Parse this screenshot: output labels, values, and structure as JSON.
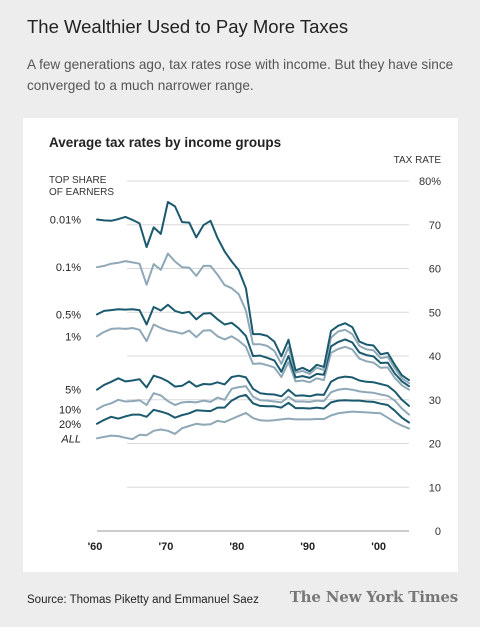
{
  "headline": "The Wealthier Used to Pay More Taxes",
  "subhead": "A few generations ago, tax rates rose with income. But they have since converged to a much narrower range.",
  "source": "Source: Thomas Piketty and Emmanuel Saez",
  "logo": "The New York Times",
  "colors": {
    "dark": "#1b5a6e",
    "light": "#8fa8b8"
  },
  "chart_data": {
    "type": "line",
    "title": "Average tax rates by income groups",
    "ylabel": "TAX RATE",
    "legend_title": "TOP SHARE\nOF EARNERS",
    "ylim": [
      0,
      80
    ],
    "yticks": [
      0,
      10,
      20,
      30,
      40,
      50,
      60,
      70,
      80
    ],
    "ytick_suffix_top": "%",
    "xlim": [
      1960,
      2004
    ],
    "xticks": [
      {
        "value": 1960,
        "label": "'60"
      },
      {
        "value": 1970,
        "label": "'70"
      },
      {
        "value": 1980,
        "label": "'80"
      },
      {
        "value": 1990,
        "label": "'90"
      },
      {
        "value": 2000,
        "label": "'00"
      }
    ],
    "x": [
      1960,
      1961,
      1962,
      1963,
      1964,
      1965,
      1966,
      1967,
      1968,
      1969,
      1970,
      1971,
      1972,
      1973,
      1974,
      1975,
      1976,
      1977,
      1978,
      1979,
      1980,
      1981,
      1982,
      1983,
      1984,
      1985,
      1986,
      1987,
      1988,
      1989,
      1990,
      1991,
      1992,
      1993,
      1994,
      1995,
      1996,
      1997,
      1998,
      1999,
      2000,
      2001,
      2002,
      2003,
      2004
    ],
    "series": [
      {
        "name": "0.01%",
        "style": "dark",
        "values": [
          71.2,
          71.0,
          70.9,
          71.3,
          71.8,
          71.1,
          70.3,
          64.9,
          69.4,
          67.9,
          75.2,
          74.2,
          70.6,
          70.5,
          67.1,
          69.9,
          70.9,
          67.0,
          63.9,
          61.6,
          59.6,
          55.5,
          45.0,
          45.0,
          44.6,
          43.3,
          39.9,
          43.7,
          36.7,
          37.3,
          36.5,
          38.0,
          37.5,
          45.7,
          46.9,
          47.5,
          46.6,
          43.3,
          42.6,
          42.4,
          40.4,
          40.7,
          38.0,
          35.6,
          34.5
        ]
      },
      {
        "name": "0.1%",
        "style": "light",
        "values": [
          60.3,
          60.6,
          61.1,
          61.3,
          61.7,
          61.4,
          61.1,
          56.3,
          61.0,
          59.7,
          63.4,
          61.6,
          60.3,
          60.2,
          58.3,
          60.6,
          60.6,
          58.6,
          56.2,
          55.5,
          54.1,
          50.4,
          42.7,
          42.7,
          42.3,
          41.2,
          38.2,
          42.0,
          36.2,
          36.6,
          35.9,
          37.3,
          36.8,
          44.2,
          45.6,
          46.0,
          45.0,
          42.3,
          41.5,
          41.3,
          39.5,
          39.8,
          37.2,
          34.9,
          33.8
        ]
      },
      {
        "name": "0.5%",
        "style": "dark",
        "values": [
          49.5,
          50.3,
          50.5,
          50.7,
          50.6,
          50.7,
          50.5,
          47.2,
          51.2,
          50.4,
          51.7,
          50.3,
          49.8,
          50.1,
          48.4,
          49.7,
          49.8,
          48.4,
          47.2,
          47.6,
          46.3,
          44.6,
          40.0,
          40.1,
          39.6,
          39.0,
          36.4,
          40.0,
          35.1,
          35.4,
          35.0,
          35.9,
          35.7,
          42.2,
          43.2,
          43.8,
          43.1,
          40.8,
          40.2,
          39.9,
          38.4,
          38.5,
          36.0,
          34.2,
          33.1
        ]
      },
      {
        "name": "1%",
        "style": "light",
        "values": [
          44.5,
          45.5,
          46.2,
          46.3,
          46.2,
          46.4,
          46.0,
          43.4,
          47.2,
          46.4,
          45.8,
          45.5,
          45.1,
          45.8,
          44.3,
          45.8,
          45.9,
          44.5,
          43.8,
          44.5,
          43.5,
          42.1,
          38.2,
          38.3,
          37.9,
          37.4,
          35.2,
          38.6,
          34.2,
          34.4,
          34.0,
          34.9,
          34.5,
          40.7,
          41.6,
          42.1,
          41.5,
          39.4,
          38.8,
          38.5,
          37.3,
          37.4,
          35.0,
          33.3,
          32.3
        ]
      },
      {
        "name": "5%",
        "style": "dark",
        "values": [
          32.3,
          33.4,
          34.1,
          34.9,
          34.2,
          34.4,
          34.7,
          32.8,
          35.5,
          35.0,
          34.2,
          33.0,
          33.2,
          34.2,
          33.0,
          33.6,
          33.5,
          34.0,
          33.5,
          35.2,
          35.5,
          35.1,
          32.5,
          31.5,
          31.3,
          31.2,
          30.8,
          32.3,
          30.9,
          31.0,
          30.8,
          31.2,
          31.1,
          34.1,
          35.0,
          35.3,
          35.1,
          34.4,
          34.1,
          34.0,
          33.6,
          33.2,
          31.9,
          30.0,
          28.6
        ]
      },
      {
        "name": "10%",
        "style": "light",
        "values": [
          27.8,
          28.7,
          29.2,
          30.0,
          29.6,
          29.7,
          29.9,
          28.8,
          31.5,
          31.0,
          29.7,
          28.8,
          29.4,
          29.5,
          29.4,
          29.8,
          29.5,
          30.5,
          30.0,
          32.5,
          32.9,
          33.1,
          30.7,
          29.9,
          29.8,
          29.6,
          29.4,
          30.7,
          29.6,
          29.6,
          29.5,
          29.8,
          29.7,
          31.7,
          32.3,
          32.5,
          32.3,
          31.9,
          31.7,
          31.6,
          31.2,
          30.9,
          29.8,
          28.0,
          26.6
        ]
      },
      {
        "name": "20%",
        "style": "dark",
        "values": [
          24.5,
          25.4,
          26.1,
          25.7,
          26.2,
          26.6,
          26.6,
          26.1,
          27.7,
          27.3,
          26.8,
          25.9,
          26.5,
          26.9,
          27.6,
          27.5,
          27.4,
          28.2,
          28.2,
          29.8,
          30.7,
          31.1,
          29.2,
          28.6,
          28.5,
          28.5,
          28.2,
          29.3,
          28.1,
          28.1,
          28.0,
          28.2,
          28.0,
          29.4,
          29.8,
          29.9,
          29.8,
          29.8,
          29.6,
          29.5,
          29.1,
          28.8,
          27.5,
          25.9,
          24.8
        ]
      },
      {
        "name": "ALL",
        "style": "light",
        "italic": true,
        "values": [
          21.2,
          21.5,
          21.8,
          21.7,
          21.3,
          21.0,
          22.0,
          21.9,
          22.9,
          23.2,
          22.9,
          22.2,
          23.5,
          24.0,
          24.5,
          24.3,
          24.4,
          25.2,
          24.9,
          25.6,
          26.3,
          27.0,
          25.8,
          25.3,
          25.2,
          25.3,
          25.5,
          25.7,
          25.5,
          25.5,
          25.5,
          25.6,
          25.6,
          26.4,
          26.9,
          27.1,
          27.3,
          27.2,
          27.1,
          27.0,
          26.9,
          25.9,
          24.9,
          24.1,
          23.4
        ]
      }
    ]
  }
}
